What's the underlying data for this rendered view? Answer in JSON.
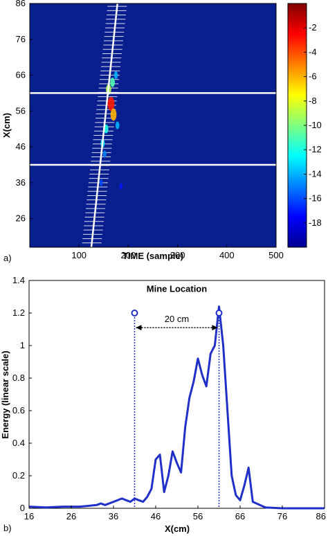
{
  "chart_data": [
    {
      "panel_label": "a)",
      "type": "heatmap",
      "xlabel": "TIME (sample)",
      "ylabel": "X(cm)",
      "xlim": [
        0,
        500
      ],
      "ylim": [
        18,
        86
      ],
      "x_ticks": [
        100,
        200,
        300,
        400,
        500
      ],
      "y_ticks": [
        26,
        36,
        46,
        56,
        66,
        76,
        86
      ],
      "background_color": "#0a1f8f",
      "colorbar": {
        "range": [
          -20,
          0
        ],
        "ticks": [
          -2,
          -4,
          -6,
          -8,
          -10,
          -12,
          -14,
          -16,
          -18
        ],
        "colormap": "jet"
      },
      "horizontal_lines_x_cm": [
        61,
        41
      ],
      "trace_line": {
        "time_at_bottom": 125,
        "time_at_top": 178
      },
      "hotspots": [
        {
          "time": 165,
          "x_cm": 58,
          "level": -3
        },
        {
          "time": 170,
          "x_cm": 55,
          "level": -6
        },
        {
          "time": 160,
          "x_cm": 62,
          "level": -9
        },
        {
          "time": 168,
          "x_cm": 64,
          "level": -11
        },
        {
          "time": 155,
          "x_cm": 51,
          "level": -12
        },
        {
          "time": 148,
          "x_cm": 47,
          "level": -13
        },
        {
          "time": 175,
          "x_cm": 66,
          "level": -14
        },
        {
          "time": 178,
          "x_cm": 52,
          "level": -14
        },
        {
          "time": 152,
          "x_cm": 44,
          "level": -15
        },
        {
          "time": 145,
          "x_cm": 36,
          "level": -16
        },
        {
          "time": 185,
          "x_cm": 35,
          "level": -17
        }
      ]
    },
    {
      "panel_label": "b)",
      "type": "line",
      "xlabel": "X(cm)",
      "ylabel": "Energy (linear scale)",
      "xlim": [
        16,
        86
      ],
      "ylim": [
        0,
        1.4
      ],
      "x_ticks": [
        16,
        26,
        36,
        46,
        56,
        66,
        76,
        86
      ],
      "y_ticks": [
        0,
        0.2,
        0.4,
        0.6,
        0.8,
        1,
        1.2,
        1.4
      ],
      "line_color": "#1f2fc8",
      "series": [
        {
          "x": [
            16,
            20,
            24,
            28,
            30,
            32,
            33,
            34,
            36,
            38,
            39,
            40,
            41,
            42,
            43,
            44,
            45,
            46,
            47,
            48,
            49,
            50,
            51,
            52,
            53,
            54,
            55,
            56,
            57,
            58,
            59,
            60,
            61,
            62,
            63,
            64,
            65,
            66,
            67,
            68,
            69,
            72,
            76,
            80,
            86
          ],
          "y": [
            0.01,
            0.005,
            0.01,
            0.01,
            0.015,
            0.02,
            0.03,
            0.02,
            0.04,
            0.06,
            0.05,
            0.04,
            0.06,
            0.05,
            0.04,
            0.07,
            0.12,
            0.3,
            0.33,
            0.1,
            0.2,
            0.35,
            0.28,
            0.22,
            0.5,
            0.68,
            0.78,
            0.92,
            0.82,
            0.75,
            0.95,
            1.0,
            1.24,
            1.0,
            0.6,
            0.2,
            0.08,
            0.05,
            0.14,
            0.25,
            0.04,
            0.005,
            0.0,
            0.0,
            0.0
          ]
        }
      ],
      "annotation": {
        "title": "Mine Location",
        "distance_label": "20 cm",
        "markers": [
          {
            "x": 41,
            "y": 1.2
          },
          {
            "x": 61,
            "y": 1.2
          }
        ]
      }
    }
  ]
}
